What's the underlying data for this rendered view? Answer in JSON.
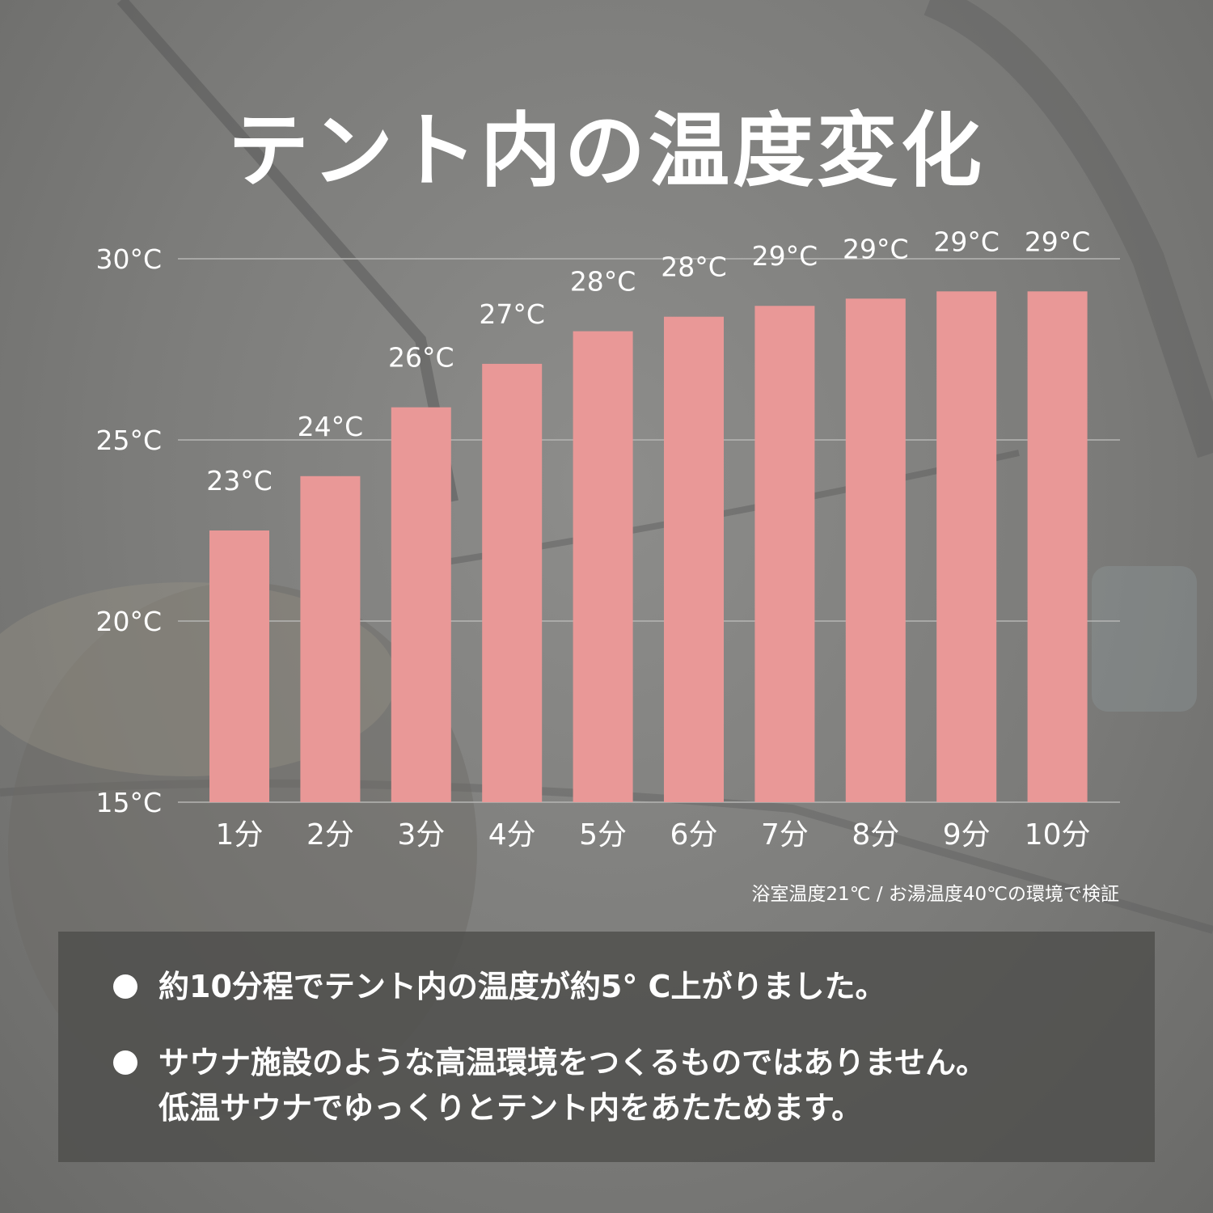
{
  "title": "テント内の温度変化",
  "colors": {
    "bar": "#e99897",
    "grid": "#b5b5b3",
    "text": "#ffffff",
    "panel": "#4e4e4c"
  },
  "chart_data": {
    "type": "bar",
    "categories": [
      "1分",
      "2分",
      "3分",
      "4分",
      "5分",
      "6分",
      "7分",
      "8分",
      "9分",
      "10分"
    ],
    "values": [
      22.5,
      24.0,
      25.9,
      27.1,
      28.0,
      28.4,
      28.7,
      28.9,
      29.1,
      29.1
    ],
    "data_labels": [
      "23°C",
      "24°C",
      "26°C",
      "27°C",
      "28°C",
      "28°C",
      "29°C",
      "29°C",
      "29°C",
      "29°C"
    ],
    "y_ticks": [
      {
        "value": 15,
        "label": "15°C"
      },
      {
        "value": 20,
        "label": "20°C"
      },
      {
        "value": 25,
        "label": "25°C"
      },
      {
        "value": 30,
        "label": "30°C"
      }
    ],
    "ylim": [
      15,
      30
    ],
    "grid": true,
    "legend": "none"
  },
  "note": "浴室温度21℃ / お湯温度40℃の環境で検証",
  "bullets": [
    {
      "lines": [
        "約10分程でテント内の温度が約5° C上がりました。"
      ]
    },
    {
      "lines": [
        "サウナ施設のような高温環境をつくるものではありません。",
        "低温サウナでゆっくりとテント内をあたためます。"
      ]
    }
  ]
}
